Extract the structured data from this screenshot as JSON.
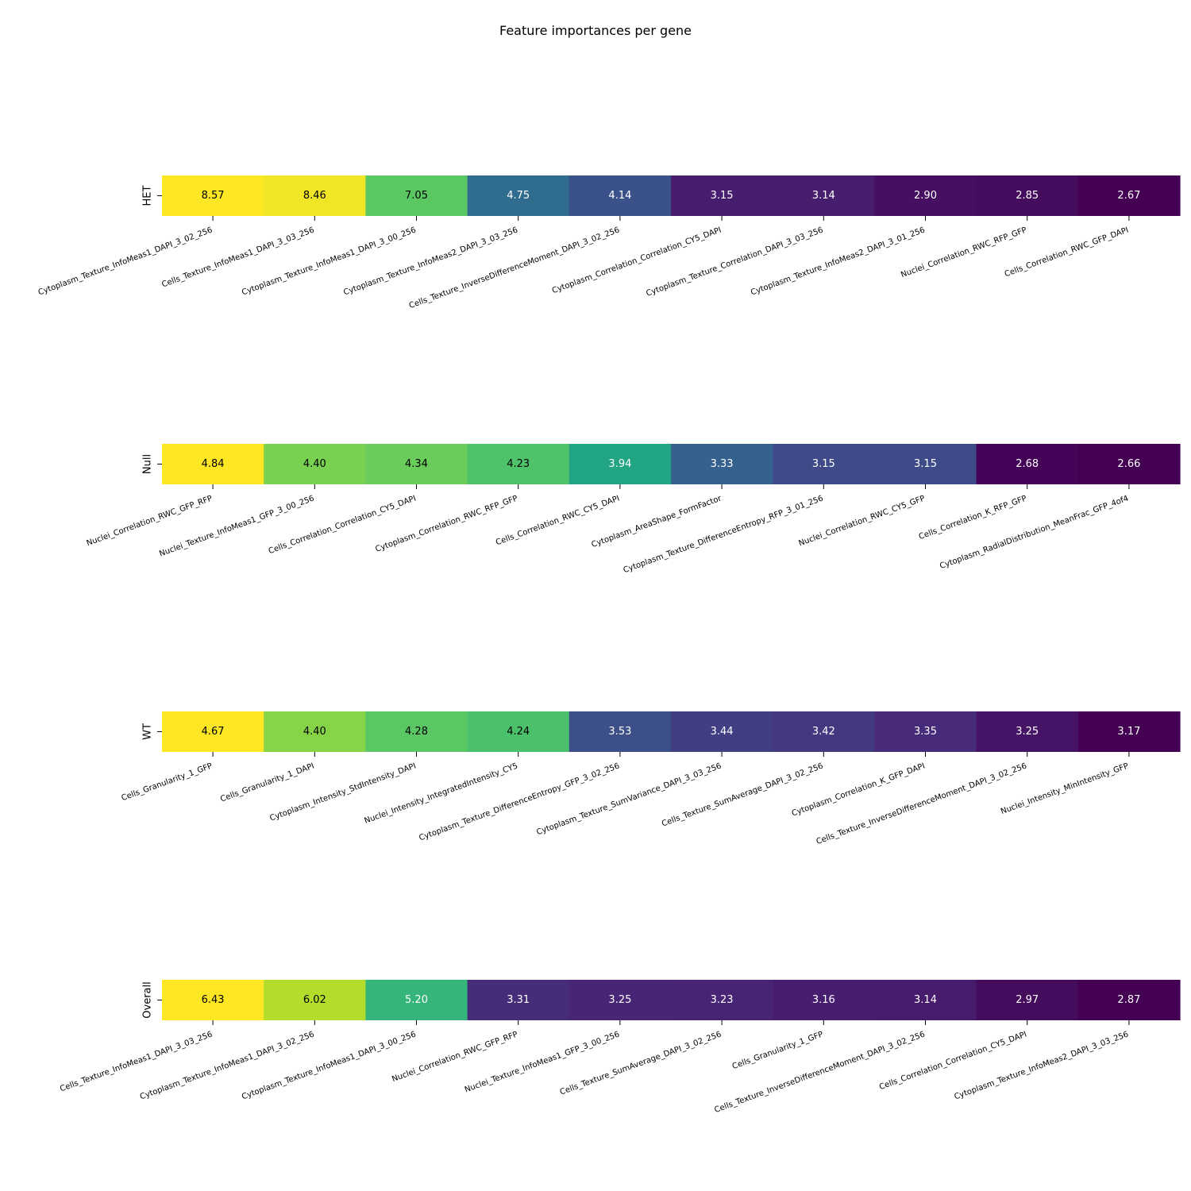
{
  "chart_data": {
    "type": "heatmap",
    "title": "Feature importances per gene",
    "colormap": "viridis",
    "panels": [
      {
        "row_label": "HET",
        "features": [
          "Cytoplasm_Texture_InfoMeas1_DAPI_3_02_256",
          "Cells_Texture_InfoMeas1_DAPI_3_03_256",
          "Cytoplasm_Texture_InfoMeas1_DAPI_3_00_256",
          "Cytoplasm_Texture_InfoMeas2_DAPI_3_03_256",
          "Cells_Texture_InverseDifferenceMoment_DAPI_3_02_256",
          "Cytoplasm_Correlation_Correlation_CY5_DAPI",
          "Cytoplasm_Texture_Correlation_DAPI_3_03_256",
          "Cytoplasm_Texture_InfoMeas2_DAPI_3_01_256",
          "Nuclei_Correlation_RWC_RFP_GFP",
          "Cells_Correlation_RWC_GFP_DAPI"
        ],
        "values": [
          8.57,
          8.46,
          7.05,
          4.75,
          4.14,
          3.15,
          3.14,
          2.9,
          2.85,
          2.67
        ],
        "labels": [
          "8.57",
          "8.46",
          "7.05",
          "4.75",
          "4.14",
          "3.15",
          "3.14",
          "2.90",
          "2.85",
          "2.67"
        ]
      },
      {
        "row_label": "Null",
        "features": [
          "Nuclei_Correlation_RWC_GFP_RFP",
          "Nuclei_Texture_InfoMeas1_GFP_3_00_256",
          "Cells_Correlation_Correlation_CY5_DAPI",
          "Cytoplasm_Correlation_RWC_RFP_GFP",
          "Cells_Correlation_RWC_CY5_DAPI",
          "Cytoplasm_AreaShape_FormFactor",
          "Cytoplasm_Texture_DifferenceEntropy_RFP_3_01_256",
          "Nuclei_Correlation_RWC_CY5_GFP",
          "Cells_Correlation_K_RFP_GFP",
          "Cytoplasm_RadialDistribution_MeanFrac_GFP_4of4"
        ],
        "values": [
          4.84,
          4.4,
          4.34,
          4.23,
          3.94,
          3.33,
          3.15,
          3.15,
          2.68,
          2.66
        ],
        "labels": [
          "4.84",
          "4.40",
          "4.34",
          "4.23",
          "3.94",
          "3.33",
          "3.15",
          "3.15",
          "2.68",
          "2.66"
        ]
      },
      {
        "row_label": "WT",
        "features": [
          "Cells_Granularity_1_GFP",
          "Cells_Granularity_1_DAPI",
          "Cytoplasm_Intensity_StdIntensity_DAPI",
          "Nuclei_Intensity_IntegratedIntensity_CY5",
          "Cytoplasm_Texture_DifferenceEntropy_GFP_3_02_256",
          "Cytoplasm_Texture_SumVariance_DAPI_3_03_256",
          "Cells_Texture_SumAverage_DAPI_3_02_256",
          "Cytoplasm_Correlation_K_GFP_DAPI",
          "Cells_Texture_InverseDifferenceMoment_DAPI_3_02_256",
          "Nuclei_Intensity_MinIntensity_GFP"
        ],
        "values": [
          4.67,
          4.4,
          4.28,
          4.24,
          3.53,
          3.44,
          3.42,
          3.35,
          3.25,
          3.17
        ],
        "labels": [
          "4.67",
          "4.40",
          "4.28",
          "4.24",
          "3.53",
          "3.44",
          "3.42",
          "3.35",
          "3.25",
          "3.17"
        ]
      },
      {
        "row_label": "Overall",
        "features": [
          "Cells_Texture_InfoMeas1_DAPI_3_03_256",
          "Cytoplasm_Texture_InfoMeas1_DAPI_3_02_256",
          "Cytoplasm_Texture_InfoMeas1_DAPI_3_00_256",
          "Nuclei_Correlation_RWC_GFP_RFP",
          "Nuclei_Texture_InfoMeas1_GFP_3_00_256",
          "Cells_Texture_SumAverage_DAPI_3_02_256",
          "Cells_Granularity_1_GFP",
          "Cells_Texture_InverseDifferenceMoment_DAPI_3_02_256",
          "Cells_Correlation_Correlation_CY5_DAPI",
          "Cytoplasm_Texture_InfoMeas2_DAPI_3_03_256"
        ],
        "values": [
          6.43,
          6.02,
          5.2,
          3.31,
          3.25,
          3.23,
          3.16,
          3.14,
          2.97,
          2.87
        ],
        "labels": [
          "6.43",
          "6.02",
          "5.20",
          "3.31",
          "3.25",
          "3.23",
          "3.16",
          "3.14",
          "2.97",
          "2.87"
        ]
      }
    ]
  }
}
